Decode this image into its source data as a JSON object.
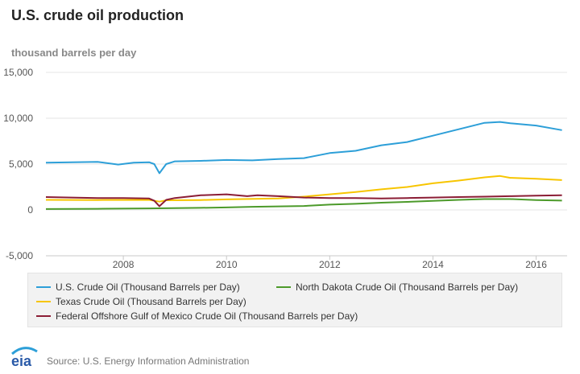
{
  "header": {
    "title": "U.S. crude oil production",
    "unit": "thousand barrels per day"
  },
  "footer": {
    "logo_text": "eia",
    "source": "Source: U.S. Energy Information Administration"
  },
  "chart_data": {
    "type": "line",
    "title": "U.S. crude oil production",
    "ylabel": "thousand barrels per day",
    "xlabel": "",
    "xlim": [
      2006.5,
      2016.6
    ],
    "ylim": [
      -5000,
      15000
    ],
    "y_ticks": [
      -5000,
      0,
      5000,
      10000,
      15000
    ],
    "y_tick_labels": [
      "-5,000",
      "0",
      "5,000",
      "10,000",
      "15,000"
    ],
    "x_ticks": [
      2008,
      2010,
      2012,
      2014,
      2016
    ],
    "x_tick_labels": [
      "2008",
      "2010",
      "2012",
      "2014",
      "2016"
    ],
    "grid": true,
    "legend_position": "bottom",
    "series": [
      {
        "name": "U.S. Crude Oil (Thousand Barrels per Day)",
        "color": "#2d9fd8",
        "x": [
          2006.5,
          2007.0,
          2007.5,
          2007.9,
          2008.2,
          2008.5,
          2008.6,
          2008.7,
          2008.83,
          2009.0,
          2009.5,
          2010.0,
          2010.5,
          2011.0,
          2011.5,
          2012.0,
          2012.5,
          2013.0,
          2013.5,
          2014.0,
          2014.5,
          2015.0,
          2015.3,
          2015.5,
          2016.0,
          2016.4,
          2016.5
        ],
        "y": [
          5150,
          5200,
          5250,
          4950,
          5150,
          5200,
          5000,
          4000,
          5000,
          5300,
          5350,
          5450,
          5400,
          5550,
          5650,
          6200,
          6450,
          7050,
          7400,
          8100,
          8800,
          9500,
          9600,
          9450,
          9200,
          8800,
          8700
        ]
      },
      {
        "name": "Texas Crude Oil (Thousand Barrels per Day)",
        "color": "#f7c500",
        "x": [
          2006.5,
          2007.5,
          2008.5,
          2008.7,
          2008.83,
          2009.5,
          2010.0,
          2011.0,
          2011.5,
          2012.0,
          2012.5,
          2013.0,
          2013.5,
          2014.0,
          2014.5,
          2015.0,
          2015.3,
          2015.5,
          2016.0,
          2016.5
        ],
        "y": [
          1100,
          1080,
          1100,
          900,
          1050,
          1080,
          1150,
          1250,
          1450,
          1700,
          1950,
          2250,
          2500,
          2900,
          3200,
          3550,
          3700,
          3500,
          3400,
          3250
        ]
      },
      {
        "name": "North Dakota Crude Oil (Thousand Barrels per Day)",
        "color": "#4c9a2a",
        "x": [
          2006.5,
          2007.5,
          2008.5,
          2009.0,
          2009.5,
          2010.0,
          2010.5,
          2011.0,
          2011.5,
          2012.0,
          2012.5,
          2013.0,
          2013.5,
          2014.0,
          2014.5,
          2015.0,
          2015.5,
          2016.0,
          2016.5
        ],
        "y": [
          100,
          120,
          170,
          200,
          230,
          270,
          340,
          390,
          430,
          580,
          670,
          790,
          880,
          980,
          1100,
          1180,
          1180,
          1080,
          1020
        ]
      },
      {
        "name": "Federal Offshore Gulf of Mexico Crude Oil (Thousand Barrels per Day)",
        "color": "#8b1d35",
        "x": [
          2006.5,
          2007.0,
          2007.5,
          2008.0,
          2008.5,
          2008.6,
          2008.7,
          2008.83,
          2009.0,
          2009.5,
          2010.0,
          2010.4,
          2010.6,
          2011.0,
          2011.5,
          2012.0,
          2012.5,
          2013.0,
          2013.5,
          2014.0,
          2014.5,
          2015.0,
          2015.5,
          2016.0,
          2016.5
        ],
        "y": [
          1400,
          1350,
          1300,
          1300,
          1250,
          1000,
          400,
          1100,
          1300,
          1600,
          1700,
          1500,
          1600,
          1500,
          1350,
          1300,
          1300,
          1250,
          1300,
          1350,
          1400,
          1450,
          1500,
          1550,
          1600
        ]
      }
    ]
  }
}
